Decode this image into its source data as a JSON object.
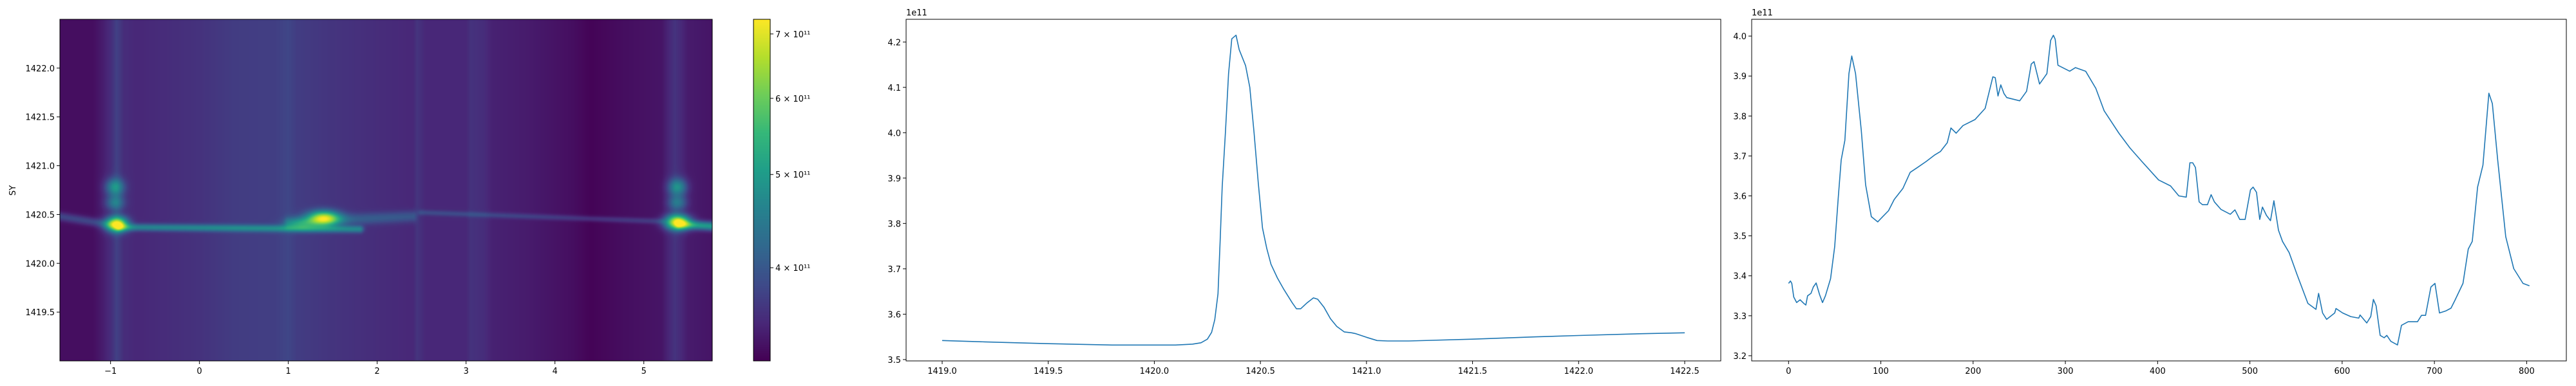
{
  "chart_data": [
    {
      "type": "heatmap",
      "ylabel": "SY",
      "xlim": [
        -1.57,
        5.77
      ],
      "ylim": [
        1419.0,
        1422.5
      ],
      "xticks": [
        -1,
        0,
        1,
        2,
        3,
        4,
        5
      ],
      "xtick_labels": [
        "−1",
        "0",
        "1",
        "2",
        "3",
        "4",
        "5"
      ],
      "yticks": [
        1419.5,
        1420.0,
        1420.5,
        1421.0,
        1421.5,
        1422.0
      ],
      "ytick_labels": [
        "1419.5",
        "1420.0",
        "1420.5",
        "1421.0",
        "1421.5",
        "1422.0"
      ],
      "colormap": "viridis",
      "value_unit": 100000000000.0,
      "colorbar": {
        "scale": "log",
        "range": [
          320000000000.0,
          725000000000.0
        ],
        "ticks": [
          400000000000.0,
          500000000000.0,
          600000000000.0,
          700000000000.0
        ],
        "tick_labels": [
          "4 × 10¹¹",
          "5 × 10¹¹",
          "6 × 10¹¹",
          "7 × 10¹¹"
        ]
      },
      "background_profile": [
        [
          -1.57,
          3.3
        ],
        [
          -1.2,
          3.3
        ],
        [
          -1.1,
          3.4
        ],
        [
          -1.0,
          3.55
        ],
        [
          -0.93,
          3.75
        ],
        [
          -0.85,
          3.55
        ],
        [
          -0.7,
          3.5
        ],
        [
          0,
          3.6
        ],
        [
          0.4,
          3.7
        ],
        [
          0.85,
          3.72
        ],
        [
          1.0,
          3.8
        ],
        [
          1.1,
          3.7
        ],
        [
          1.5,
          3.62
        ],
        [
          2.0,
          3.55
        ],
        [
          2.4,
          3.5
        ],
        [
          2.45,
          3.62
        ],
        [
          2.55,
          3.5
        ],
        [
          3.0,
          3.5
        ],
        [
          3.05,
          3.6
        ],
        [
          3.2,
          3.55
        ],
        [
          3.3,
          3.45
        ],
        [
          3.7,
          3.4
        ],
        [
          4.2,
          3.3
        ],
        [
          4.4,
          3.22
        ],
        [
          4.8,
          3.3
        ],
        [
          5.2,
          3.35
        ],
        [
          5.35,
          3.62
        ],
        [
          5.5,
          3.4
        ],
        [
          5.77,
          3.35
        ]
      ],
      "blobs": [
        {
          "x": -0.93,
          "y": 1420.4,
          "amp": 3.6,
          "sx": 0.08,
          "sy": 0.05
        },
        {
          "x": -0.95,
          "y": 1420.78,
          "amp": 1.3,
          "sx": 0.07,
          "sy": 0.06
        },
        {
          "x": -0.95,
          "y": 1420.62,
          "amp": 0.9,
          "sx": 0.07,
          "sy": 0.05
        },
        {
          "x": 1.4,
          "y": 1420.46,
          "amp": 3.2,
          "sx": 0.12,
          "sy": 0.05
        },
        {
          "x": 1.15,
          "y": 1420.4,
          "amp": 1.0,
          "sx": 0.12,
          "sy": 0.04
        },
        {
          "x": 5.38,
          "y": 1420.42,
          "amp": 3.6,
          "sx": 0.09,
          "sy": 0.05
        },
        {
          "x": 5.38,
          "y": 1420.78,
          "amp": 1.3,
          "sx": 0.07,
          "sy": 0.06
        },
        {
          "x": 5.38,
          "y": 1420.62,
          "amp": 0.9,
          "sx": 0.07,
          "sy": 0.05
        }
      ],
      "ridges": [
        {
          "x0": -1.57,
          "x1": -0.9,
          "y0": 1420.48,
          "y1": 1420.38,
          "amp": 0.5,
          "w": 0.03
        },
        {
          "x0": -0.9,
          "x1": 1.8,
          "y0": 1420.37,
          "y1": 1420.35,
          "amp": 1.1,
          "w": 0.025
        },
        {
          "x0": 1.0,
          "x1": 2.4,
          "y0": 1420.42,
          "y1": 1420.48,
          "amp": 0.5,
          "w": 0.04
        },
        {
          "x0": 2.5,
          "x1": 5.2,
          "y0": 1420.52,
          "y1": 1420.43,
          "amp": 0.35,
          "w": 0.02
        },
        {
          "x0": 5.4,
          "x1": 5.77,
          "y0": 1420.4,
          "y1": 1420.38,
          "amp": 1.6,
          "w": 0.03
        }
      ]
    },
    {
      "type": "line",
      "offset_text": "1e11",
      "xlim": [
        1418.83,
        1422.67
      ],
      "ylim": [
        3.497,
        4.25
      ],
      "xticks": [
        1419.0,
        1419.5,
        1420.0,
        1420.5,
        1421.0,
        1421.5,
        1422.0,
        1422.5
      ],
      "xtick_labels": [
        "1419.0",
        "1419.5",
        "1420.0",
        "1420.5",
        "1421.0",
        "1421.5",
        "1422.0",
        "1422.5"
      ],
      "yticks": [
        3.5,
        3.6,
        3.7,
        3.8,
        3.9,
        4.0,
        4.1,
        4.2
      ],
      "ytick_labels": [
        "3.5",
        "3.6",
        "3.7",
        "3.8",
        "3.9",
        "4.0",
        "4.1",
        "4.2"
      ],
      "color": "#1f77b4",
      "points": [
        [
          1419.0,
          3.542
        ],
        [
          1419.2,
          3.539
        ],
        [
          1419.5,
          3.535
        ],
        [
          1419.8,
          3.532
        ],
        [
          1420.0,
          3.532
        ],
        [
          1420.1,
          3.532
        ],
        [
          1420.18,
          3.534
        ],
        [
          1420.22,
          3.537
        ],
        [
          1420.25,
          3.545
        ],
        [
          1420.27,
          3.56
        ],
        [
          1420.285,
          3.588
        ],
        [
          1420.3,
          3.645
        ],
        [
          1420.31,
          3.76
        ],
        [
          1420.32,
          3.88
        ],
        [
          1420.335,
          4.0
        ],
        [
          1420.35,
          4.13
        ],
        [
          1420.365,
          4.207
        ],
        [
          1420.385,
          4.215
        ],
        [
          1420.4,
          4.183
        ],
        [
          1420.43,
          4.148
        ],
        [
          1420.45,
          4.1
        ],
        [
          1420.47,
          4.0
        ],
        [
          1420.49,
          3.89
        ],
        [
          1420.51,
          3.79
        ],
        [
          1420.53,
          3.745
        ],
        [
          1420.55,
          3.71
        ],
        [
          1420.58,
          3.68
        ],
        [
          1420.61,
          3.655
        ],
        [
          1420.65,
          3.625
        ],
        [
          1420.67,
          3.612
        ],
        [
          1420.69,
          3.612
        ],
        [
          1420.72,
          3.625
        ],
        [
          1420.75,
          3.636
        ],
        [
          1420.77,
          3.633
        ],
        [
          1420.8,
          3.615
        ],
        [
          1420.83,
          3.59
        ],
        [
          1420.86,
          3.573
        ],
        [
          1420.895,
          3.561
        ],
        [
          1420.93,
          3.559
        ],
        [
          1420.95,
          3.557
        ],
        [
          1421.0,
          3.549
        ],
        [
          1421.05,
          3.542
        ],
        [
          1421.1,
          3.541
        ],
        [
          1421.2,
          3.541
        ],
        [
          1421.5,
          3.545
        ],
        [
          1421.8,
          3.55
        ],
        [
          1422.0,
          3.553
        ],
        [
          1422.3,
          3.557
        ],
        [
          1422.5,
          3.559
        ]
      ]
    },
    {
      "type": "line",
      "offset_text": "1e11",
      "xlim": [
        -40,
        843
      ],
      "ylim": [
        3.187,
        4.042
      ],
      "xticks": [
        0,
        100,
        200,
        300,
        400,
        500,
        600,
        700,
        800
      ],
      "xtick_labels": [
        "0",
        "100",
        "200",
        "300",
        "400",
        "500",
        "600",
        "700",
        "800"
      ],
      "yticks": [
        3.2,
        3.3,
        3.4,
        3.5,
        3.6,
        3.7,
        3.8,
        3.9,
        4.0
      ],
      "ytick_labels": [
        "3.2",
        "3.3",
        "3.4",
        "3.5",
        "3.6",
        "3.7",
        "3.8",
        "3.9",
        "4.0"
      ],
      "color": "#1f77b4",
      "points": [
        [
          0,
          3.381
        ],
        [
          2,
          3.387
        ],
        [
          3.5,
          3.381
        ],
        [
          5.6,
          3.347
        ],
        [
          8.7,
          3.333
        ],
        [
          12.5,
          3.34
        ],
        [
          16.5,
          3.331
        ],
        [
          18.7,
          3.327
        ],
        [
          20.6,
          3.35
        ],
        [
          24.3,
          3.356
        ],
        [
          26.8,
          3.372
        ],
        [
          29.9,
          3.382
        ],
        [
          33.6,
          3.353
        ],
        [
          36.8,
          3.333
        ],
        [
          39.9,
          3.35
        ],
        [
          45.5,
          3.393
        ],
        [
          50,
          3.473
        ],
        [
          53.9,
          3.597
        ],
        [
          57,
          3.69
        ],
        [
          61,
          3.739
        ],
        [
          65.4,
          3.906
        ],
        [
          68.5,
          3.95
        ],
        [
          72.6,
          3.906
        ],
        [
          78.8,
          3.764
        ],
        [
          83.5,
          3.628
        ],
        [
          89.7,
          3.548
        ],
        [
          96.6,
          3.535
        ],
        [
          102,
          3.548
        ],
        [
          108.3,
          3.563
        ],
        [
          114.5,
          3.591
        ],
        [
          124,
          3.619
        ],
        [
          131.8,
          3.659
        ],
        [
          139.6,
          3.671
        ],
        [
          149,
          3.686
        ],
        [
          158,
          3.702
        ],
        [
          164.5,
          3.711
        ],
        [
          172,
          3.733
        ],
        [
          176,
          3.77
        ],
        [
          181.6,
          3.757
        ],
        [
          189,
          3.776
        ],
        [
          202,
          3.791
        ],
        [
          213,
          3.819
        ],
        [
          217.6,
          3.862
        ],
        [
          221.4,
          3.898
        ],
        [
          224,
          3.896
        ],
        [
          227,
          3.85
        ],
        [
          230,
          3.878
        ],
        [
          233.5,
          3.856
        ],
        [
          236.5,
          3.846
        ],
        [
          250.5,
          3.838
        ],
        [
          258,
          3.862
        ],
        [
          263,
          3.93
        ],
        [
          266,
          3.936
        ],
        [
          272,
          3.88
        ],
        [
          280,
          3.906
        ],
        [
          284,
          3.989
        ],
        [
          287,
          4.002
        ],
        [
          289,
          3.992
        ],
        [
          292,
          3.927
        ],
        [
          304.7,
          3.912
        ],
        [
          311,
          3.921
        ],
        [
          322,
          3.912
        ],
        [
          333,
          3.869
        ],
        [
          342,
          3.813
        ],
        [
          358,
          3.757
        ],
        [
          370,
          3.72
        ],
        [
          383,
          3.686
        ],
        [
          401,
          3.64
        ],
        [
          414,
          3.625
        ],
        [
          423,
          3.6
        ],
        [
          431,
          3.597
        ],
        [
          435,
          3.683
        ],
        [
          438,
          3.683
        ],
        [
          441,
          3.671
        ],
        [
          445,
          3.585
        ],
        [
          448.6,
          3.578
        ],
        [
          454,
          3.578
        ],
        [
          458,
          3.603
        ],
        [
          461.5,
          3.585
        ],
        [
          468.7,
          3.566
        ],
        [
          478.8,
          3.554
        ],
        [
          483.8,
          3.565
        ],
        [
          489,
          3.541
        ],
        [
          494.8,
          3.541
        ],
        [
          500.6,
          3.615
        ],
        [
          503.5,
          3.622
        ],
        [
          507.2,
          3.609
        ],
        [
          510.7,
          3.541
        ],
        [
          513.6,
          3.572
        ],
        [
          518,
          3.551
        ],
        [
          522.3,
          3.538
        ],
        [
          526,
          3.588
        ],
        [
          531,
          3.514
        ],
        [
          535.4,
          3.486
        ],
        [
          542.6,
          3.458
        ],
        [
          551.3,
          3.402
        ],
        [
          562.9,
          3.331
        ],
        [
          571.6,
          3.316
        ],
        [
          574.5,
          3.356
        ],
        [
          578.8,
          3.307
        ],
        [
          583.2,
          3.291
        ],
        [
          591.9,
          3.307
        ],
        [
          593.3,
          3.318
        ],
        [
          600.6,
          3.307
        ],
        [
          609.3,
          3.298
        ],
        [
          618,
          3.294
        ],
        [
          619.4,
          3.302
        ],
        [
          626.7,
          3.282
        ],
        [
          631,
          3.298
        ],
        [
          633.9,
          3.341
        ],
        [
          636.8,
          3.325
        ],
        [
          641.2,
          3.251
        ],
        [
          645.5,
          3.245
        ],
        [
          648.4,
          3.251
        ],
        [
          652.8,
          3.236
        ],
        [
          660,
          3.227
        ],
        [
          664.3,
          3.276
        ],
        [
          671.6,
          3.285
        ],
        [
          681.7,
          3.285
        ],
        [
          686,
          3.301
        ],
        [
          690.4,
          3.301
        ],
        [
          696.2,
          3.372
        ],
        [
          700.6,
          3.381
        ],
        [
          705.5,
          3.307
        ],
        [
          712.2,
          3.312
        ],
        [
          718,
          3.319
        ],
        [
          722.3,
          3.339
        ],
        [
          731,
          3.381
        ],
        [
          736.7,
          3.467
        ],
        [
          741,
          3.486
        ],
        [
          746.8,
          3.622
        ],
        [
          752.6,
          3.677
        ],
        [
          759,
          3.857
        ],
        [
          762.8,
          3.831
        ],
        [
          768.6,
          3.69
        ],
        [
          777.3,
          3.498
        ],
        [
          786,
          3.418
        ],
        [
          796,
          3.381
        ],
        [
          803,
          3.375
        ]
      ]
    }
  ]
}
